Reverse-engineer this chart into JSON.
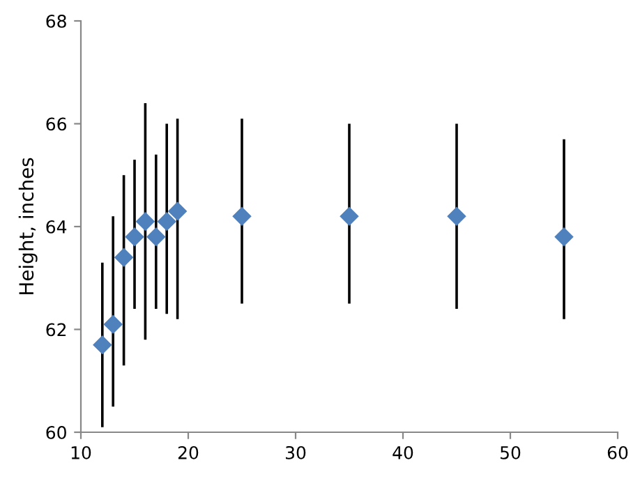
{
  "chart_data": {
    "type": "scatter",
    "ylabel": "Height, inches",
    "x": [
      12,
      13,
      14,
      15,
      16,
      17,
      18,
      19,
      25,
      35,
      45,
      55
    ],
    "series": [
      {
        "color": "#4f81bd",
        "values": [
          61.7,
          62.1,
          63.4,
          63.8,
          64.1,
          63.8,
          64.1,
          64.3,
          64.2,
          64.2,
          64.2,
          63.8
        ],
        "errors": [
          [
            60.1,
            63.3
          ],
          [
            60.5,
            64.2
          ],
          [
            61.3,
            65.0
          ],
          [
            62.4,
            65.3
          ],
          [
            61.8,
            66.4
          ],
          [
            62.4,
            65.4
          ],
          [
            62.3,
            66.0
          ],
          [
            62.2,
            66.1
          ],
          [
            62.5,
            66.1
          ],
          [
            62.5,
            66.0
          ],
          [
            62.4,
            66.0
          ],
          [
            62.2,
            65.7
          ]
        ]
      }
    ],
    "xlim": [
      10,
      60
    ],
    "xticks": [
      10,
      20,
      30,
      40,
      50,
      60
    ],
    "ylim": [
      60,
      68
    ],
    "yticks": [
      60,
      62,
      64,
      66,
      68
    ],
    "marker": "diamond",
    "grid": false
  }
}
